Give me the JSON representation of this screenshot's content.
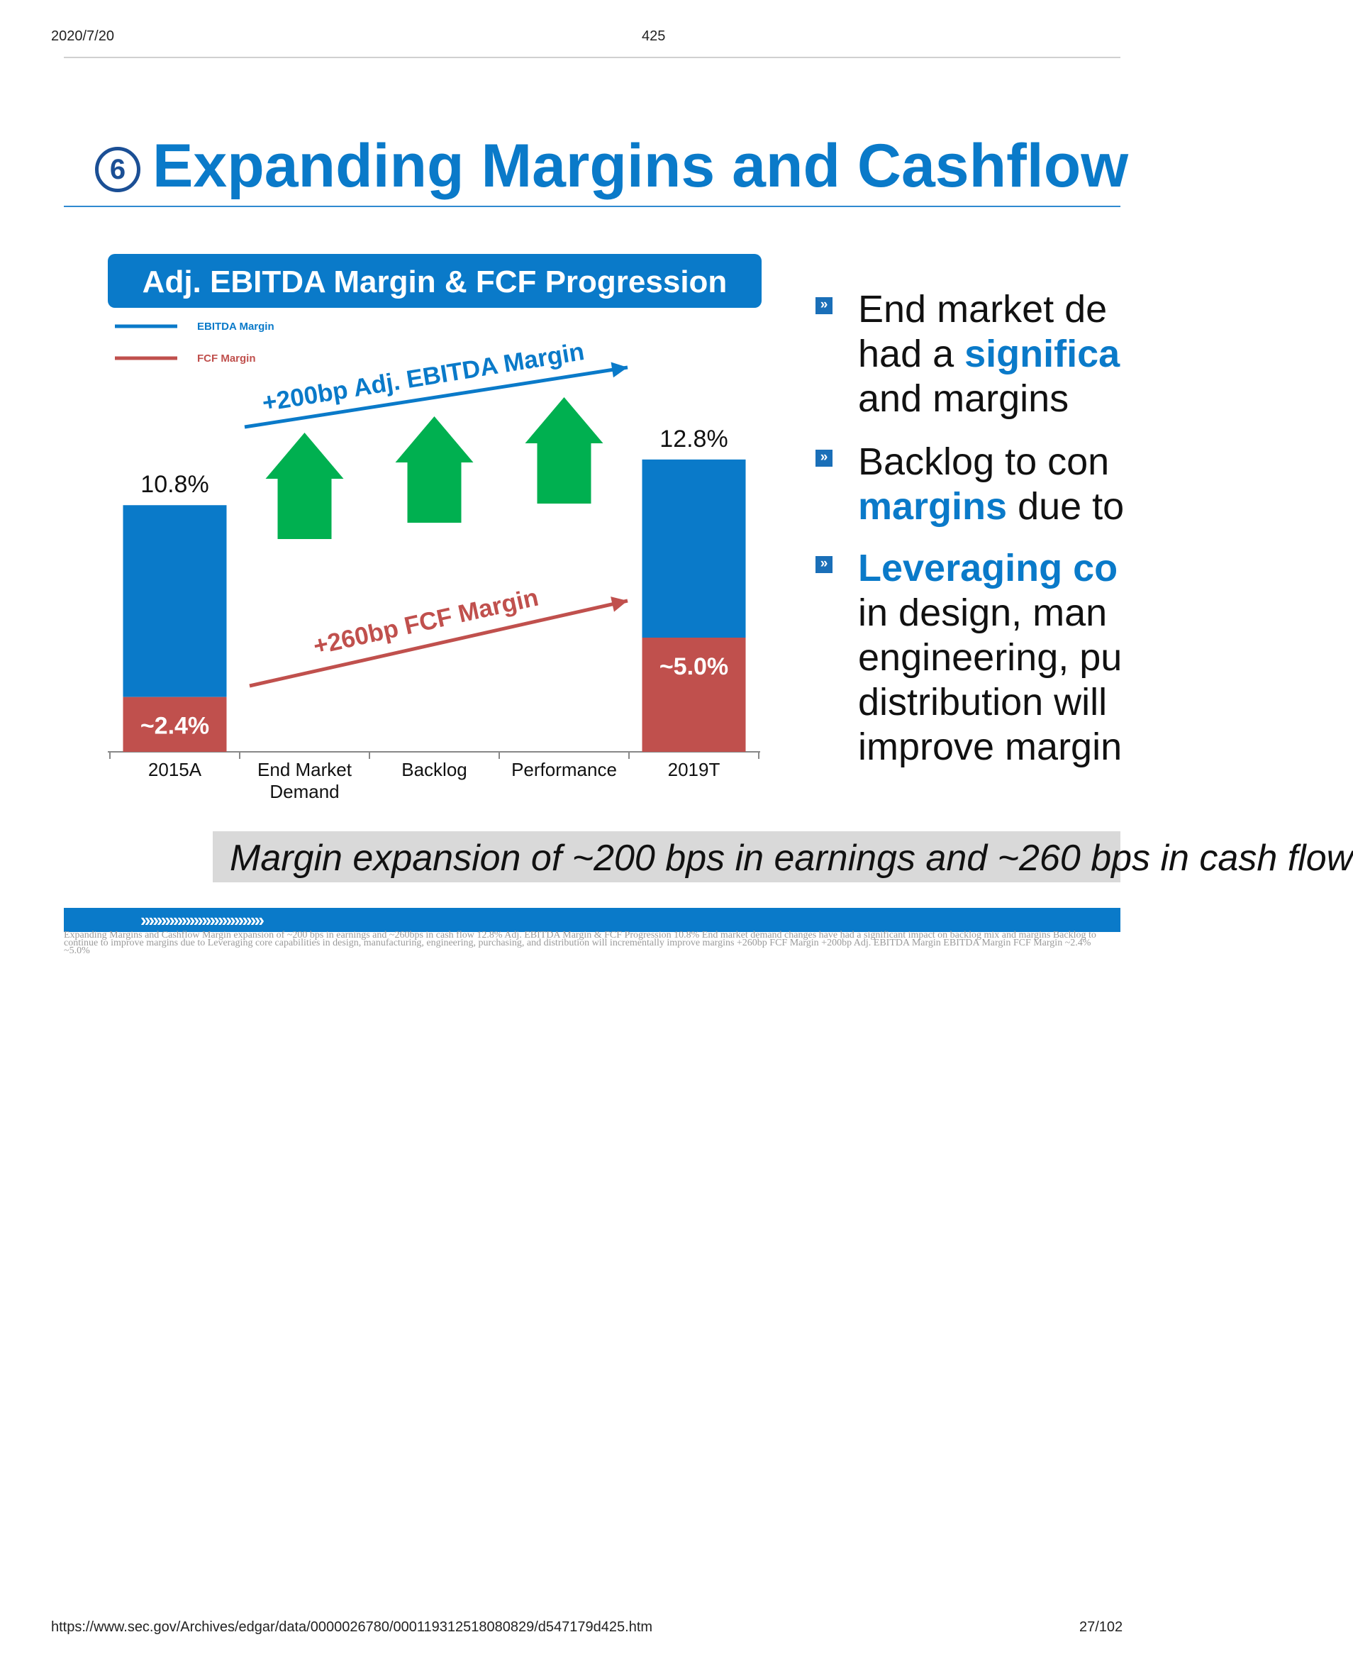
{
  "header": {
    "date": "2020/7/20",
    "page_number": "425"
  },
  "slide": {
    "title_number": "6",
    "title": "Expanding Margins and Cashflow",
    "bullets": [
      {
        "pre": "End market de",
        "line2_pre": "had a ",
        "line2_hl": "significa",
        "line3": "and margins"
      },
      {
        "pre": "Backlog to con",
        "line2_hl": "margins",
        "line2_post": " due to"
      },
      {
        "hl": "Leveraging co",
        "lines": [
          "in design, man",
          "engineering, pu",
          "distribution will",
          "improve margin"
        ]
      }
    ],
    "summary": "Margin expansion of ~200 bps in earnings and ~260 bps in cash flow",
    "chevrons": "»»»»»»»»»»»»»»»",
    "alt_text": "Expanding Margins and Cashflow Margin expansion of ~200 bps in earnings and ~260bps in cash flow 12.8% Adj. EBITDA Margin & FCF Progression 10.8% End market demand changes have had a significant impact on backlog mix and margins Backlog to continue to improve margins due to Leveraging core capabilities in design, manufacturing, engineering, purchasing, and distribution will incrementally improve margins +260bp FCF Margin +200bp Adj. EBITDA Margin EBITDA Margin FCF Margin ~2.4% ~5.0%"
  },
  "chart_data": {
    "type": "bar",
    "title": "Adj. EBITDA Margin & FCF Progression",
    "categories": [
      "2015A",
      "End Market Demand",
      "Backlog",
      "Performance",
      "2019T"
    ],
    "category_lines": [
      [
        "2015A"
      ],
      [
        "End Market",
        "Demand"
      ],
      [
        "Backlog"
      ],
      [
        "Performance"
      ],
      [
        "2019T"
      ]
    ],
    "legend": [
      {
        "name": "EBITDA Margin",
        "color": "#0a7ac9"
      },
      {
        "name": "FCF Margin",
        "color": "#c0504d"
      }
    ],
    "series": [
      {
        "name": "EBITDA Margin",
        "values": [
          10.8,
          null,
          null,
          null,
          12.8
        ],
        "labels": [
          "10.8%",
          "",
          "",
          "",
          "12.8%"
        ]
      },
      {
        "name": "FCF Margin",
        "values": [
          2.4,
          null,
          null,
          null,
          5.0
        ],
        "labels": [
          "~2.4%",
          "",
          "",
          "",
          "~5.0%"
        ]
      }
    ],
    "drivers": [
      "End Market Demand",
      "Backlog",
      "Performance"
    ],
    "annotations": [
      {
        "text": "+200bp Adj. EBITDA Margin",
        "color": "#0a7ac9"
      },
      {
        "text": "+260bp FCF Margin",
        "color": "#c0504d"
      }
    ],
    "colors": {
      "ebitda": "#0a7ac9",
      "fcf": "#c0504d",
      "arrow_up": "#00b050",
      "title_bg": "#0a7ac9"
    },
    "ylim": [
      0,
      14
    ]
  },
  "footer": {
    "url": "https://www.sec.gov/Archives/edgar/data/0000026780/000119312518080829/d547179d425.htm",
    "page": "27/102"
  }
}
